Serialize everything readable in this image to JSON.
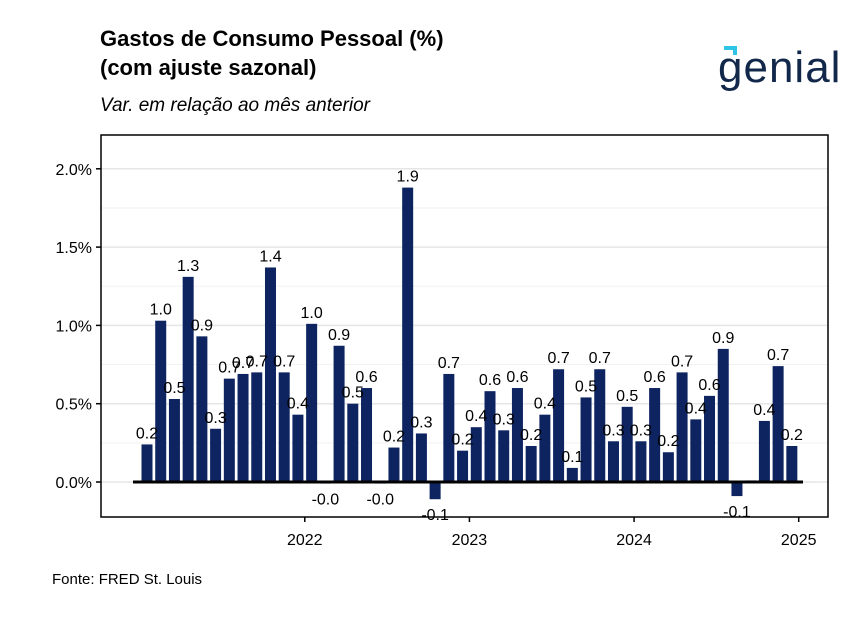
{
  "header": {
    "title_line1": "Gastos de Consumo Pessoal (%)",
    "title_line2": "(com ajuste sazonal)",
    "subtitle": "Var. em relação ao mês anterior",
    "logo_text": "genial"
  },
  "footer": {
    "source": "Fonte: FRED St. Louis"
  },
  "colors": {
    "bar": "#0d2461",
    "zero_line": "#000000",
    "grid": "#e6e6e6"
  },
  "chart_data": {
    "type": "bar",
    "title": "Gastos de Consumo Pessoal (%) (com ajuste sazonal)",
    "subtitle": "Var. em relação ao mês anterior",
    "xlabel": "",
    "ylabel": "",
    "ylim": [
      -0.22,
      2.2
    ],
    "yticks": [
      0.0,
      0.5,
      1.0,
      1.5,
      2.0
    ],
    "ytick_labels": [
      "0.0%",
      "0.5%",
      "1.0%",
      "1.5%",
      "2.0%"
    ],
    "xtick_labels": [
      "2022",
      "2023",
      "2024",
      "2025"
    ],
    "xtick_month_index": [
      11,
      23,
      35,
      47
    ],
    "grid": true,
    "legend": "none",
    "categories": [
      "2021-09",
      "2021-10",
      "2021-11",
      "2021-12",
      "2022-01",
      "2022-02",
      "2022-03",
      "2022-04",
      "2022-05",
      "2022-06",
      "2022-07",
      "2022-08",
      "2022-09",
      "2022-10",
      "2022-11",
      "2022-12",
      "2023-01",
      "2023-02",
      "2023-03",
      "2023-04",
      "2023-05",
      "2023-06",
      "2023-07",
      "2023-08",
      "2023-09",
      "2023-10",
      "2023-11",
      "2023-12",
      "2024-01",
      "2024-02",
      "2024-03",
      "2024-04",
      "2024-05",
      "2024-06",
      "2024-07",
      "2024-08",
      "2024-09",
      "2024-10",
      "2024-11",
      "2024-12",
      "2025-01",
      "2025-02",
      "2025-03",
      "2025-04",
      "2025-05",
      "2025-06",
      "2025-07",
      "2025-08",
      "2025-09"
    ],
    "values": [
      0.24,
      1.03,
      0.53,
      1.31,
      0.93,
      0.34,
      0.66,
      0.69,
      0.7,
      1.37,
      0.7,
      0.43,
      1.01,
      -0.01,
      0.87,
      0.5,
      0.6,
      -0.01,
      0.22,
      1.88,
      0.31,
      -0.11,
      0.69,
      0.2,
      0.35,
      0.58,
      0.33,
      0.6,
      0.23,
      0.43,
      0.72,
      0.09,
      0.54,
      0.72,
      0.26,
      0.48,
      0.26,
      0.6,
      0.19,
      0.7,
      0.4,
      0.55,
      0.85,
      -0.09,
      0.01,
      0.39,
      0.74,
      0.23,
      0.0
    ],
    "labels": [
      "0.2",
      "1.0",
      "0.5",
      "1.3",
      "0.9",
      "0.3",
      "0.7",
      "0.7",
      "0.7",
      "1.4",
      "0.7",
      "0.4",
      "1.0",
      "-0.0",
      "0.9",
      "0.5",
      "0.6",
      "-0.0",
      "0.2",
      "1.9",
      "0.3",
      "-0.1",
      "0.7",
      "0.2",
      "0.4",
      "0.6",
      "0.3",
      "0.6",
      "0.2",
      "0.4",
      "0.7",
      "0.1",
      "0.5",
      "0.7",
      "0.3",
      "0.5",
      "0.3",
      "0.6",
      "0.2",
      "0.7",
      "0.4",
      "0.6",
      "0.9",
      "-0.1",
      "",
      "0.4",
      "0.7",
      "0.2",
      ""
    ]
  }
}
